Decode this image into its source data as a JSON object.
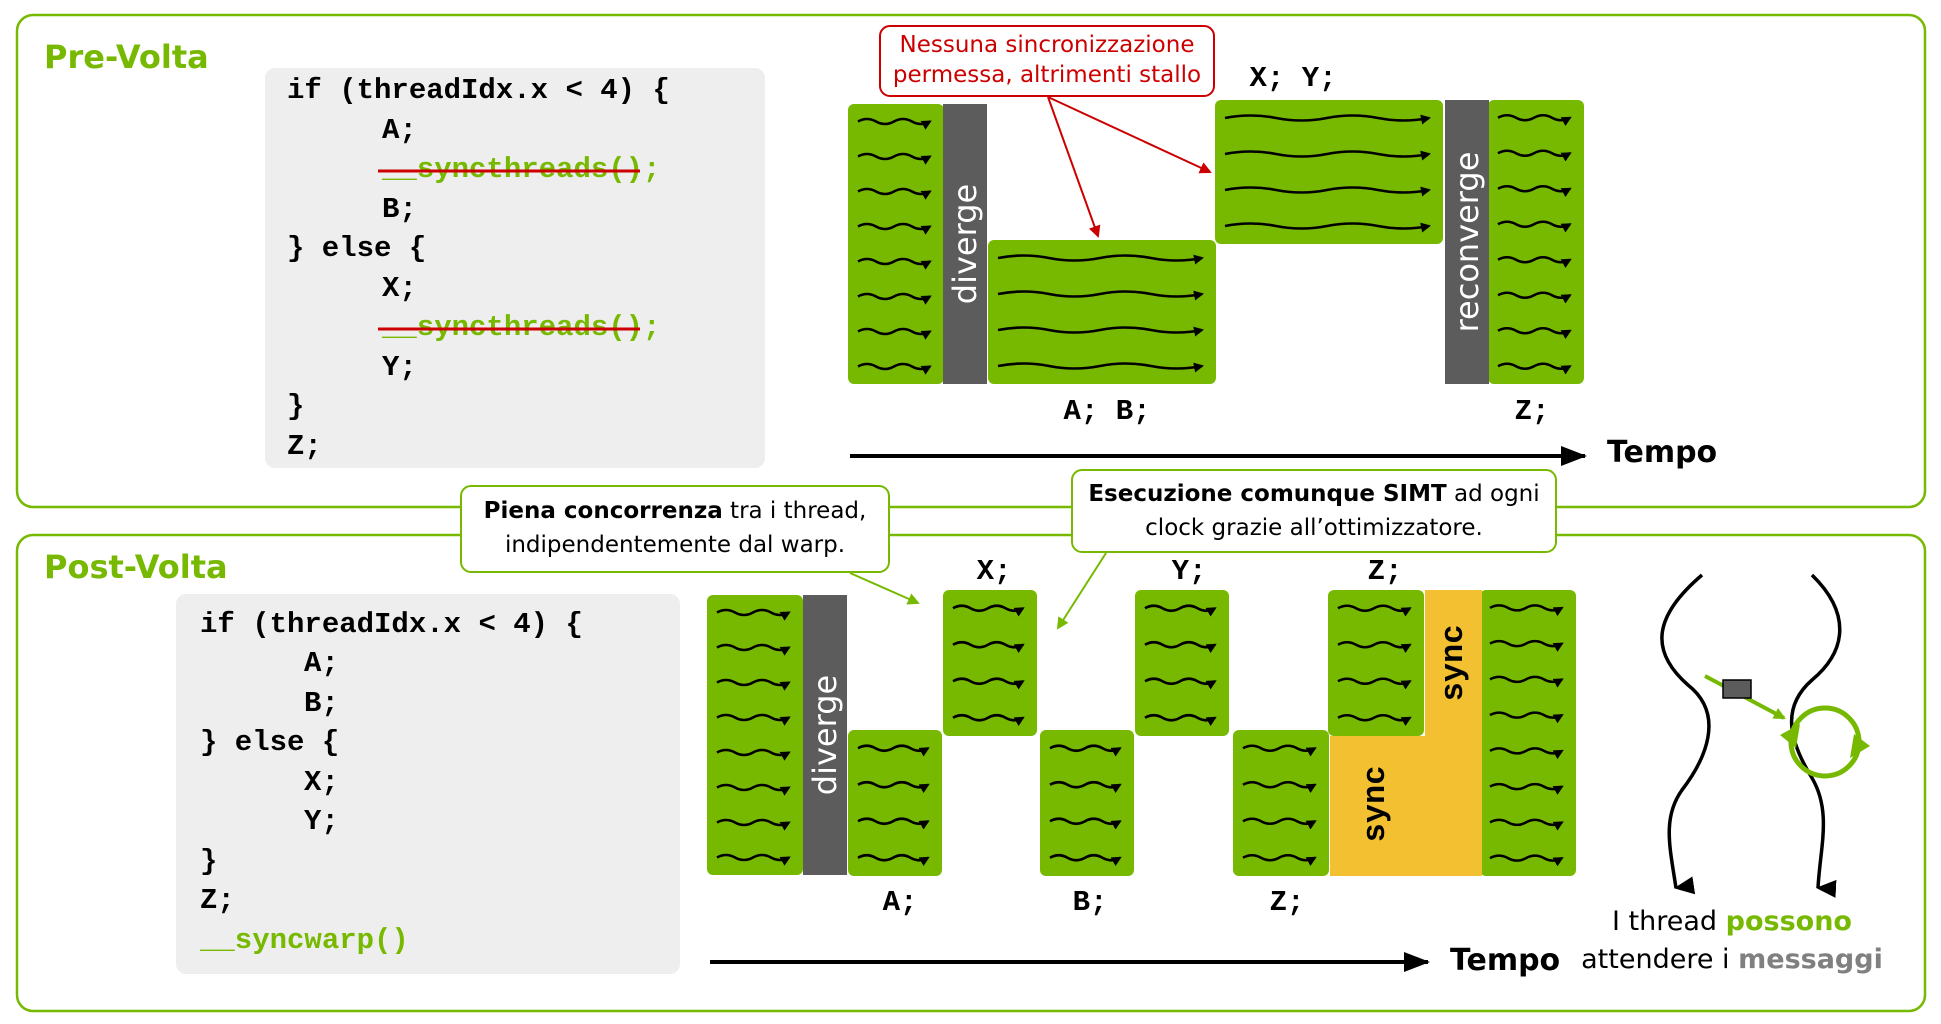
{
  "colors": {
    "green": "#76b900",
    "block_green": "#76b900",
    "dark_gray": "#5c5c5c",
    "sync_yellow": "#f2c030",
    "red": "#cc0000",
    "code_bg": "#eeeeee",
    "msg_gray": "#808080"
  },
  "pre": {
    "title": "Pre-Volta",
    "code": {
      "line1": "if (threadIdx.x < 4) {",
      "line2": "A;",
      "line3_prefix": "__",
      "line3_fn": "syncthreads",
      "line3_suffix": "();",
      "line4": "B;",
      "line5": "} else {",
      "line6": "X;",
      "line7_prefix": "__",
      "line7_fn": "syncthreads",
      "line7_suffix": "();",
      "line8": "Y;",
      "line9": "}",
      "line10": "Z;"
    },
    "callout_line1": "Nessuna sincronizzazione",
    "callout_line2": "permessa, altrimenti stallo",
    "diverge": "diverge",
    "reconverge": "reconverge",
    "label_xy": "X; Y;",
    "label_ab": "A; B;",
    "label_z": "Z;",
    "tempo": "Tempo"
  },
  "post": {
    "title": "Post-Volta",
    "code": {
      "line1": "if (threadIdx.x < 4) {",
      "line2": "A;",
      "line3": "B;",
      "line4": "} else {",
      "line5": "X;",
      "line6": "Y;",
      "line7": "}",
      "line8": "Z;",
      "line9": "__syncwarp()"
    },
    "callout1_bold": "Piena concorrenza",
    "callout1_rest": " tra i thread,",
    "callout1_line2": "indipendentemente dal warp.",
    "callout2_bold": "Esecuzione comunque SIMT",
    "callout2_rest": " ad ogni",
    "callout2_line2": "clock grazie all’ottimizzatore.",
    "diverge": "diverge",
    "sync": "sync",
    "label_x": "X;",
    "label_y": "Y;",
    "label_z_top": "Z;",
    "label_a": "A;",
    "label_b": "B;",
    "label_z_bottom": "Z;",
    "tempo": "Tempo",
    "msg_line1_a": "I thread ",
    "msg_line1_b": "possono",
    "msg_line2_a": "attendere i ",
    "msg_line2_b": "messaggi"
  }
}
